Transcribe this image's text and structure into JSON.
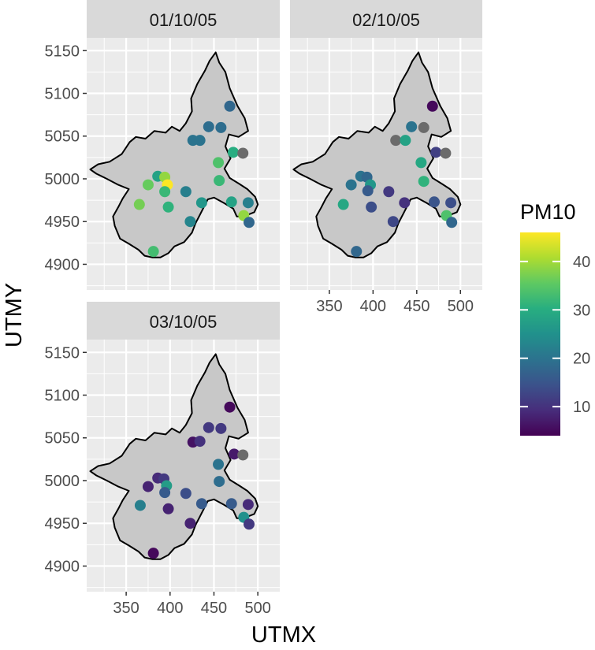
{
  "chart_data": {
    "type": "scatter",
    "xlabel": "UTMX",
    "ylabel": "UTMY",
    "xlim": [
      305,
      525
    ],
    "ylim": [
      4870,
      5165
    ],
    "xticks": [
      350,
      400,
      450,
      500
    ],
    "yticks": [
      4900,
      4950,
      5000,
      5050,
      5100,
      5150
    ],
    "legend": {
      "title": "PM10",
      "ticks": [
        10,
        20,
        30,
        40
      ],
      "min": 4,
      "max": 46,
      "position": "right"
    },
    "colors": {
      "panel_bg": "#ebebeb",
      "strip_bg": "#d9d9d9",
      "grid": "#ffffff",
      "region_fill": "#c8c8c8",
      "na_point": "#6b6b6b"
    },
    "panels": [
      {
        "title": "01/10/05",
        "points": [
          {
            "x": 468,
            "y": 5085,
            "pm10": 18
          },
          {
            "x": 444,
            "y": 5061,
            "pm10": 19
          },
          {
            "x": 458,
            "y": 5060,
            "pm10": 19
          },
          {
            "x": 426,
            "y": 5045,
            "pm10": 20
          },
          {
            "x": 434,
            "y": 5045,
            "pm10": 20
          },
          {
            "x": 472,
            "y": 5031,
            "pm10": 30
          },
          {
            "x": 483,
            "y": 5030,
            "pm10": null
          },
          {
            "x": 455,
            "y": 5019,
            "pm10": 34
          },
          {
            "x": 386,
            "y": 5003,
            "pm10": 28
          },
          {
            "x": 394,
            "y": 5002,
            "pm10": 39
          },
          {
            "x": 375,
            "y": 4993,
            "pm10": 36
          },
          {
            "x": 397,
            "y": 4993,
            "pm10": 46
          },
          {
            "x": 394,
            "y": 4985,
            "pm10": 32
          },
          {
            "x": 418,
            "y": 4985,
            "pm10": 22
          },
          {
            "x": 456,
            "y": 4998,
            "pm10": 32
          },
          {
            "x": 365,
            "y": 4970,
            "pm10": 37
          },
          {
            "x": 398,
            "y": 4967,
            "pm10": 31
          },
          {
            "x": 436,
            "y": 4972,
            "pm10": 26
          },
          {
            "x": 470,
            "y": 4973,
            "pm10": 28
          },
          {
            "x": 489,
            "y": 4972,
            "pm10": 22
          },
          {
            "x": 484,
            "y": 4957,
            "pm10": 39
          },
          {
            "x": 423,
            "y": 4950,
            "pm10": 23
          },
          {
            "x": 490,
            "y": 4949,
            "pm10": 18
          },
          {
            "x": 381,
            "y": 4915,
            "pm10": 33
          }
        ]
      },
      {
        "title": "02/10/05",
        "points": [
          {
            "x": 468,
            "y": 5085,
            "pm10": 5
          },
          {
            "x": 444,
            "y": 5061,
            "pm10": 20
          },
          {
            "x": 458,
            "y": 5060,
            "pm10": null
          },
          {
            "x": 426,
            "y": 5045,
            "pm10": null
          },
          {
            "x": 437,
            "y": 5045,
            "pm10": 28
          },
          {
            "x": 472,
            "y": 5031,
            "pm10": 12
          },
          {
            "x": 483,
            "y": 5030,
            "pm10": null
          },
          {
            "x": 455,
            "y": 5019,
            "pm10": 29
          },
          {
            "x": 386,
            "y": 5003,
            "pm10": 20
          },
          {
            "x": 393,
            "y": 5002,
            "pm10": 18
          },
          {
            "x": 375,
            "y": 4993,
            "pm10": 20
          },
          {
            "x": 397,
            "y": 4993,
            "pm10": 26
          },
          {
            "x": 394,
            "y": 4986,
            "pm10": 16
          },
          {
            "x": 418,
            "y": 4985,
            "pm10": 11
          },
          {
            "x": 458,
            "y": 4997,
            "pm10": 31
          },
          {
            "x": 366,
            "y": 4970,
            "pm10": 29
          },
          {
            "x": 398,
            "y": 4967,
            "pm10": 14
          },
          {
            "x": 436,
            "y": 4972,
            "pm10": 10
          },
          {
            "x": 470,
            "y": 4973,
            "pm10": 15
          },
          {
            "x": 489,
            "y": 4972,
            "pm10": 14
          },
          {
            "x": 484,
            "y": 4957,
            "pm10": 34
          },
          {
            "x": 423,
            "y": 4950,
            "pm10": 13
          },
          {
            "x": 490,
            "y": 4949,
            "pm10": 18
          },
          {
            "x": 381,
            "y": 4915,
            "pm10": 18
          }
        ]
      },
      {
        "title": "03/10/05",
        "points": [
          {
            "x": 468,
            "y": 5086,
            "pm10": 5
          },
          {
            "x": 444,
            "y": 5062,
            "pm10": 11
          },
          {
            "x": 458,
            "y": 5061,
            "pm10": 11
          },
          {
            "x": 426,
            "y": 5045,
            "pm10": 6
          },
          {
            "x": 434,
            "y": 5046,
            "pm10": 10
          },
          {
            "x": 473,
            "y": 5031,
            "pm10": 7
          },
          {
            "x": 483,
            "y": 5030,
            "pm10": null
          },
          {
            "x": 455,
            "y": 5019,
            "pm10": 20
          },
          {
            "x": 386,
            "y": 5003,
            "pm10": 9
          },
          {
            "x": 393,
            "y": 5002,
            "pm10": 11
          },
          {
            "x": 375,
            "y": 4993,
            "pm10": 8
          },
          {
            "x": 396,
            "y": 4994,
            "pm10": 27
          },
          {
            "x": 394,
            "y": 4986,
            "pm10": 16
          },
          {
            "x": 418,
            "y": 4985,
            "pm10": 14
          },
          {
            "x": 456,
            "y": 4999,
            "pm10": 19
          },
          {
            "x": 366,
            "y": 4971,
            "pm10": 22
          },
          {
            "x": 398,
            "y": 4967,
            "pm10": 8
          },
          {
            "x": 436,
            "y": 4973,
            "pm10": 16
          },
          {
            "x": 470,
            "y": 4973,
            "pm10": 16
          },
          {
            "x": 489,
            "y": 4972,
            "pm10": 9
          },
          {
            "x": 484,
            "y": 4957,
            "pm10": 25
          },
          {
            "x": 423,
            "y": 4950,
            "pm10": 8
          },
          {
            "x": 490,
            "y": 4949,
            "pm10": 11
          },
          {
            "x": 381,
            "y": 4915,
            "pm10": 5
          }
        ]
      }
    ]
  }
}
